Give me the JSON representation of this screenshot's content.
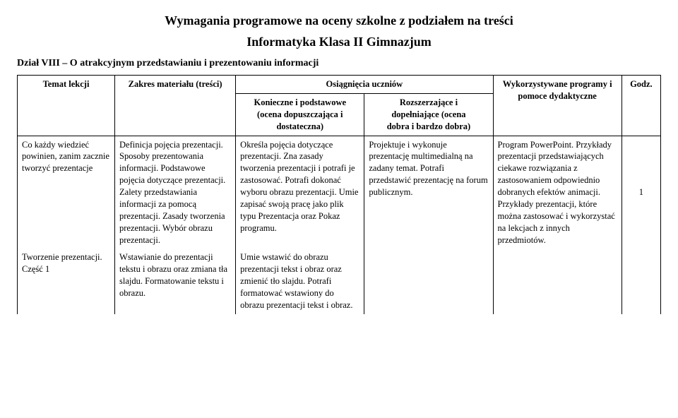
{
  "title_main": "Wymagania programowe na oceny szkolne z podziałem na treści",
  "title_sub": "Informatyka Klasa II Gimnazjum",
  "section_label": "Dział VIII – O atrakcyjnym przedstawianiu i prezentowaniu informacji",
  "headers": {
    "topic": "Temat lekcji",
    "scope": "Zakres materiału (treści)",
    "achievements_span": "Osiągnięcia uczniów",
    "ach1_line1": "Konieczne i podstawowe",
    "ach1_line2": "(ocena dopuszczająca i",
    "ach1_line3": "dostateczna)",
    "ach2_line1": "Rozszerzające i",
    "ach2_line2": "dopełniające (ocena",
    "ach2_line3": "dobra i bardzo dobra)",
    "tools": "Wykorzystywane programy i pomoce dydaktyczne",
    "hours": "Godz."
  },
  "rows": [
    {
      "topic": "Co każdy wiedzieć powinien, zanim zacznie tworzyć prezentacje",
      "scope": "Definicja pojęcia prezentacji. Sposoby prezentowania informacji. Podstawowe pojęcia dotyczące prezentacji. Zalety przedstawiania informacji za pomocą prezentacji. Zasady tworzenia prezentacji. Wybór obrazu prezentacji.",
      "ach1": "Określa pojęcia dotyczące prezentacji. Zna zasady tworzenia prezentacji i potrafi je zastosować. Potrafi dokonać wyboru obrazu prezentacji. Umie zapisać swoją pracę jako plik typu Prezentacja oraz Pokaz programu.",
      "ach2": "Projektuje i wykonuje prezentację multimedialną na zadany temat. Potrafi przedstawić prezentację na forum publicznym.",
      "tools": "Program PowerPoint. Przykłady prezentacji przedstawiających ciekawe rozwiązania z zastosowaniem odpowiednio dobranych efektów animacji. Przykłady prezentacji, które można zastosować i wykorzystać na lekcjach z innych przedmiotów.",
      "hours": "1"
    },
    {
      "topic": "Tworzenie prezentacji. Część 1",
      "scope": "Wstawianie do prezentacji tekstu i obrazu oraz zmiana tła slajdu. Formatowanie tekstu i obrazu.",
      "ach1": "Umie wstawić do obrazu prezentacji tekst i obraz oraz zmienić tło slajdu. Potrafi formatować wstawiony do obrazu prezentacji tekst i obraz.",
      "ach2": "",
      "tools": "",
      "hours": ""
    }
  ]
}
